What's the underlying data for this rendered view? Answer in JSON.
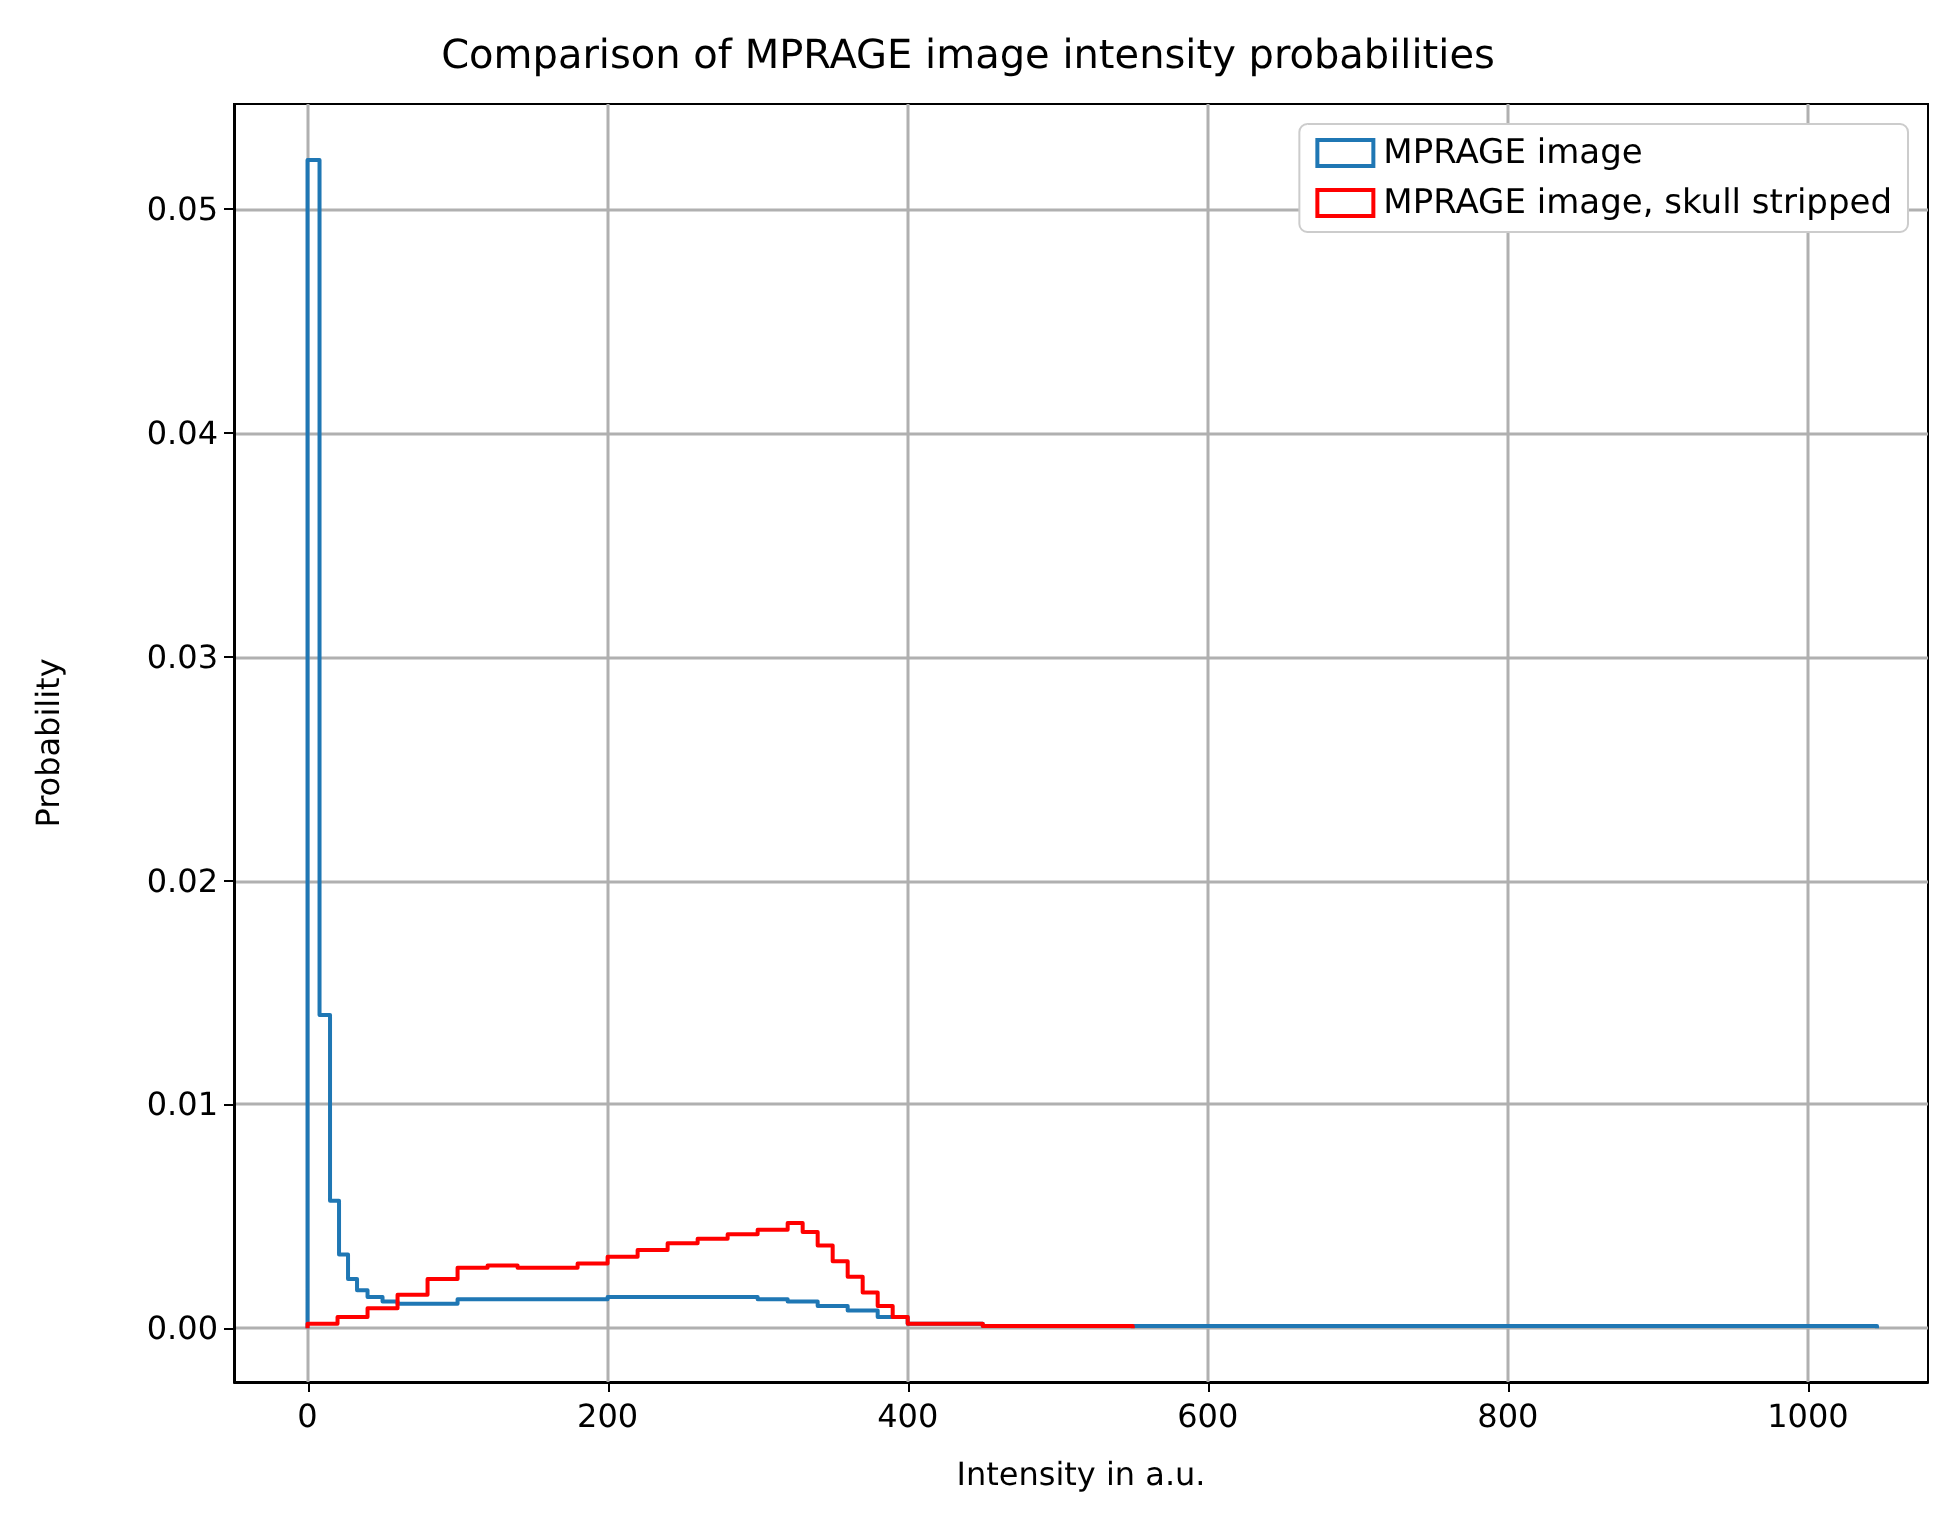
{
  "chart_data": {
    "type": "histogram",
    "title": "Comparison of MPRAGE image intensity probabilities",
    "xlabel": "Intensity in a.u.",
    "ylabel": "Probability",
    "bins": [
      0,
      8,
      15,
      20,
      21,
      27,
      33,
      40,
      50,
      60,
      80,
      100,
      120,
      140,
      150,
      160,
      180,
      200,
      220,
      240,
      250,
      260,
      280,
      300,
      320,
      330,
      340,
      350,
      360,
      370,
      380,
      390,
      400,
      450,
      550,
      1046
    ],
    "series": [
      {
        "name": "MPRAGE image",
        "color": "#1f77b4",
        "values": [
          0.0522,
          0.014,
          0.0057,
          0.0057,
          0.0033,
          0.0022,
          0.0017,
          0.0014,
          0.0012,
          0.0011,
          0.0011,
          0.0013,
          0.0013,
          0.0013,
          0.0013,
          0.0013,
          0.0013,
          0.0014,
          0.0014,
          0.0014,
          0.0014,
          0.0014,
          0.0014,
          0.0013,
          0.0012,
          0.0012,
          0.001,
          0.001,
          0.0008,
          0.0008,
          0.0005,
          0.0005,
          0.0002,
          0.0001,
          0.0001
        ]
      },
      {
        "name": "MPRAGE image, skull stripped",
        "color": "#ff0000",
        "bins": [
          0,
          8,
          15,
          20,
          21,
          27,
          33,
          40,
          50,
          60,
          80,
          100,
          120,
          140,
          150,
          160,
          180,
          200,
          220,
          240,
          250,
          260,
          280,
          300,
          320,
          330,
          340,
          350,
          360,
          370,
          380,
          390,
          400,
          450,
          550
        ],
        "values": [
          0.0002,
          0.0002,
          0.0002,
          0.0005,
          0.0005,
          0.0005,
          0.0005,
          0.0009,
          0.0009,
          0.0015,
          0.0022,
          0.0027,
          0.0028,
          0.0027,
          0.0027,
          0.0027,
          0.0029,
          0.0032,
          0.0035,
          0.0038,
          0.0038,
          0.004,
          0.0042,
          0.0044,
          0.0047,
          0.0043,
          0.0037,
          0.003,
          0.0023,
          0.0016,
          0.001,
          0.0005,
          0.0002,
          0.0001
        ]
      }
    ],
    "xlim": [
      -49,
      1080
    ],
    "ylim": [
      -0.0024,
      0.0547
    ],
    "xticks": [
      0,
      200,
      400,
      600,
      800,
      1000
    ],
    "yticks": [
      {
        "value": 0,
        "label": "0.00"
      },
      {
        "value": 0.01,
        "label": "0.01"
      },
      {
        "value": 0.02,
        "label": "0.02"
      },
      {
        "value": 0.03,
        "label": "0.03"
      },
      {
        "value": 0.04,
        "label": "0.04"
      },
      {
        "value": 0.05,
        "label": "0.05"
      }
    ],
    "grid": true,
    "legend": "top right"
  }
}
